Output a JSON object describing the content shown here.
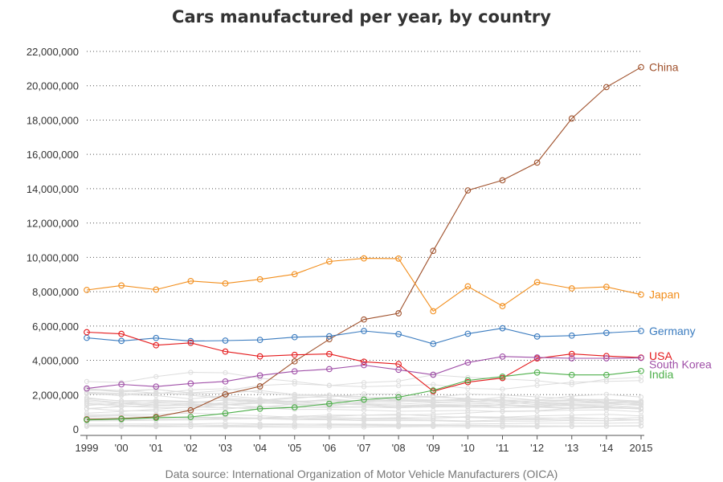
{
  "chart_data": {
    "type": "line",
    "title": "Cars manufactured per year, by country",
    "source": "Data source: International Organization of Motor Vehicle Manufacturers (OICA)",
    "x": [
      1999,
      2000,
      2001,
      2002,
      2003,
      2004,
      2005,
      2006,
      2007,
      2008,
      2009,
      2010,
      2011,
      2012,
      2013,
      2014,
      2015
    ],
    "x_tick_labels": [
      "1999",
      "'00",
      "'01",
      "'02",
      "'03",
      "'04",
      "'05",
      "'06",
      "'07",
      "'08",
      "'09",
      "'10",
      "'11",
      "'12",
      "'13",
      "'14",
      "2015"
    ],
    "ylim": [
      0,
      22000000
    ],
    "y_ticks": [
      0,
      2000000,
      4000000,
      6000000,
      8000000,
      10000000,
      12000000,
      14000000,
      16000000,
      18000000,
      20000000,
      22000000
    ],
    "y_tick_labels": [
      "0",
      "2,000,000",
      "4,000,000",
      "6,000,000",
      "8,000,000",
      "10,000,000",
      "12,000,000",
      "14,000,000",
      "16,000,000",
      "18,000,000",
      "20,000,000",
      "22,000,000"
    ],
    "grid": "horizontal dotted",
    "legend": "labels at line ends",
    "series": [
      {
        "name": "China",
        "color": "#a0522d",
        "values": [
          565000,
          605000,
          705000,
          1090000,
          2020000,
          2480000,
          3940000,
          5230000,
          6380000,
          6740000,
          10380000,
          13900000,
          14490000,
          15520000,
          18090000,
          19920000,
          21080000
        ]
      },
      {
        "name": "Japan",
        "color": "#f28e1c",
        "values": [
          8100000,
          8360000,
          8120000,
          8620000,
          8480000,
          8720000,
          9020000,
          9760000,
          9940000,
          9930000,
          6860000,
          8310000,
          7160000,
          8550000,
          8190000,
          8280000,
          7830000
        ]
      },
      {
        "name": "Germany",
        "color": "#3a7bbf",
        "values": [
          5310000,
          5130000,
          5300000,
          5120000,
          5150000,
          5190000,
          5350000,
          5400000,
          5710000,
          5530000,
          4960000,
          5550000,
          5870000,
          5390000,
          5440000,
          5600000,
          5710000
        ]
      },
      {
        "name": "USA",
        "color": "#e41a1c",
        "values": [
          5640000,
          5540000,
          4880000,
          5020000,
          4510000,
          4230000,
          4320000,
          4370000,
          3920000,
          3780000,
          2200000,
          2730000,
          2970000,
          4110000,
          4370000,
          4250000,
          4160000
        ]
      },
      {
        "name": "South Korea",
        "color": "#a050a8",
        "values": [
          2360000,
          2600000,
          2470000,
          2650000,
          2770000,
          3120000,
          3360000,
          3490000,
          3720000,
          3450000,
          3160000,
          3870000,
          4220000,
          4170000,
          4120000,
          4120000,
          4140000
        ]
      },
      {
        "name": "India",
        "color": "#4daf4a",
        "values": [
          530000,
          580000,
          650000,
          700000,
          910000,
          1180000,
          1260000,
          1470000,
          1710000,
          1850000,
          2250000,
          2830000,
          3050000,
          3290000,
          3150000,
          3150000,
          3380000
        ]
      }
    ],
    "background_series_color": "#dddddd"
  }
}
